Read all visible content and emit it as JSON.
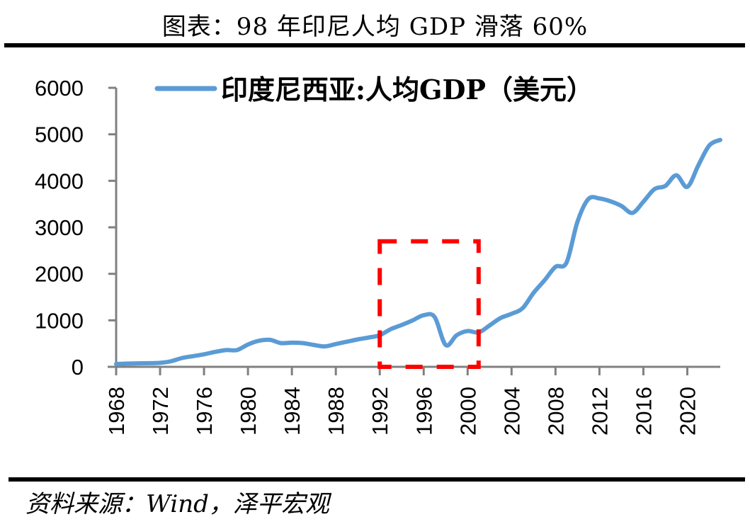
{
  "title": "图表：98 年印尼人均 GDP 滑落 60%",
  "source": "资料来源：Wind，泽平宏观",
  "colors": {
    "line": "#5B9BD5",
    "highlight": "#FF0000",
    "axis": "#808080"
  },
  "chart_data": {
    "type": "line",
    "title": "",
    "xlabel": "",
    "ylabel": "",
    "ylim": [
      0,
      6000
    ],
    "xlim": [
      1968,
      2023
    ],
    "grid": false,
    "legend_position": "top",
    "y_ticks": [
      "0",
      "1000",
      "2000",
      "3000",
      "4000",
      "5000",
      "6000"
    ],
    "y_tick_values": [
      0,
      1000,
      2000,
      3000,
      4000,
      5000,
      6000
    ],
    "x_ticks": [
      "1968",
      "1972",
      "1976",
      "1980",
      "1984",
      "1988",
      "1992",
      "1996",
      "2000",
      "2004",
      "2008",
      "2012",
      "2016",
      "2020"
    ],
    "x_tick_values": [
      1968,
      1972,
      1976,
      1980,
      1984,
      1988,
      1992,
      1996,
      2000,
      2004,
      2008,
      2012,
      2016,
      2020
    ],
    "series": [
      {
        "name": "印度尼西亚:人均GDP（美元）",
        "x": [
          1968,
          1969,
          1970,
          1971,
          1972,
          1973,
          1974,
          1975,
          1976,
          1977,
          1978,
          1979,
          1980,
          1981,
          1982,
          1983,
          1984,
          1985,
          1986,
          1987,
          1988,
          1989,
          1990,
          1991,
          1992,
          1993,
          1994,
          1995,
          1996,
          1997,
          1998,
          1999,
          2000,
          2001,
          2002,
          2003,
          2004,
          2005,
          2006,
          2007,
          2008,
          2009,
          2010,
          2011,
          2012,
          2013,
          2014,
          2015,
          2016,
          2017,
          2018,
          2019,
          2020,
          2021,
          2022,
          2023
        ],
        "values": [
          60,
          70,
          75,
          78,
          85,
          120,
          190,
          230,
          270,
          320,
          360,
          360,
          480,
          560,
          580,
          510,
          520,
          510,
          470,
          440,
          490,
          540,
          590,
          630,
          680,
          810,
          900,
          1000,
          1110,
          1070,
          470,
          680,
          770,
          740,
          890,
          1050,
          1140,
          1260,
          1590,
          1860,
          2150,
          2240,
          3120,
          3610,
          3620,
          3560,
          3460,
          3310,
          3550,
          3820,
          3890,
          4120,
          3870,
          4330,
          4760,
          4880
        ]
      }
    ],
    "annotations": [
      {
        "type": "dashed-box",
        "x_range": [
          1992,
          2001
        ],
        "y_range": [
          0,
          2700
        ],
        "color": "#FF0000"
      }
    ]
  }
}
